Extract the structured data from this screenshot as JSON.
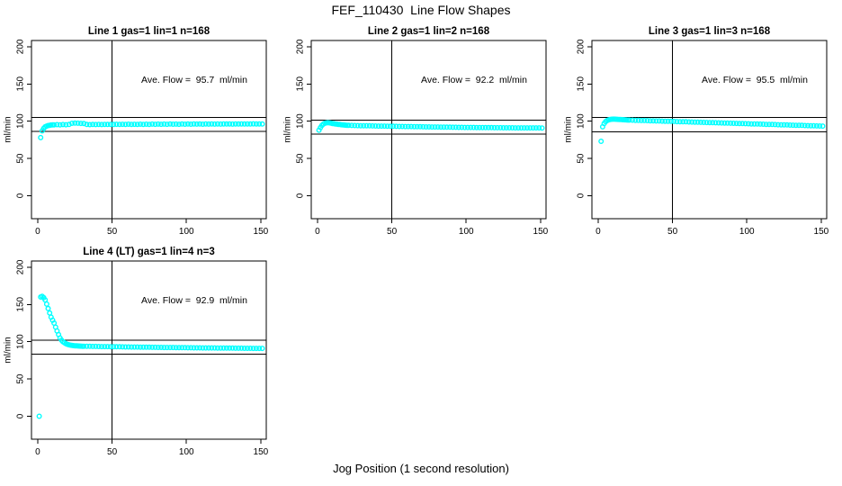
{
  "figure": {
    "title": "FEF_110430  Line Flow Shapes",
    "xlabel": "Jog Position (1 second resolution)"
  },
  "colors": {
    "points": "#00FFFF",
    "axis": "#000000",
    "background": "#FFFFFF"
  },
  "chart_data": [
    {
      "type": "scatter",
      "title": "Line 1 gas=1 lin=1 n=168",
      "gas": 1,
      "lin": 1,
      "n": 168,
      "annotation": "Ave. Flow =  95.7  ml/min",
      "ave_flow_ml_min": 95.7,
      "ylabel": "ml/min",
      "xticks": [
        0,
        50,
        100,
        150
      ],
      "yticks": [
        0,
        50,
        100,
        150,
        200
      ],
      "xlim": [
        -4.2,
        153.7
      ],
      "ylim": [
        -30.8,
        208.3
      ],
      "vlines": [
        50
      ],
      "hlines": [
        105.3,
        86.1
      ],
      "points": [
        [
          2,
          78
        ],
        [
          3,
          87
        ],
        [
          4,
          90.5
        ],
        [
          5,
          92.5
        ],
        [
          6,
          93.5
        ],
        [
          7,
          94.2
        ],
        [
          8,
          94.6
        ],
        [
          9,
          94.9
        ],
        [
          10,
          95.1
        ],
        [
          11,
          95.2
        ],
        [
          13,
          95.4
        ],
        [
          15,
          95.2
        ],
        [
          17,
          95.5
        ],
        [
          19,
          95.3
        ],
        [
          21,
          95.6
        ],
        [
          23,
          97.2
        ],
        [
          25,
          97.4
        ],
        [
          27,
          97.3
        ],
        [
          29,
          97.1
        ],
        [
          31,
          96.8
        ],
        [
          33,
          95.6
        ],
        [
          35,
          95.4
        ],
        [
          37,
          95.6
        ],
        [
          39,
          95.5
        ],
        [
          41,
          95.7
        ],
        [
          43,
          95.5
        ],
        [
          45,
          95.8
        ],
        [
          47,
          95.6
        ],
        [
          49,
          95.8
        ],
        [
          51,
          95.6
        ],
        [
          53,
          95.9
        ],
        [
          55,
          95.7
        ],
        [
          57,
          95.9
        ],
        [
          59,
          95.7
        ],
        [
          61,
          96.0
        ],
        [
          63,
          95.8
        ],
        [
          65,
          95.9
        ],
        [
          67,
          95.7
        ],
        [
          69,
          96.0
        ],
        [
          71,
          95.8
        ],
        [
          73,
          96.0
        ],
        [
          75,
          95.8
        ],
        [
          77,
          96.1
        ],
        [
          79,
          95.9
        ],
        [
          81,
          96.1
        ],
        [
          83,
          95.9
        ],
        [
          85,
          96.1
        ],
        [
          87,
          95.9
        ],
        [
          89,
          96.2
        ],
        [
          91,
          96.0
        ],
        [
          93,
          96.1
        ],
        [
          95,
          95.9
        ],
        [
          97,
          96.2
        ],
        [
          99,
          96.0
        ],
        [
          101,
          96.2
        ],
        [
          103,
          96.0
        ],
        [
          105,
          96.3
        ],
        [
          107,
          96.1
        ],
        [
          109,
          96.2
        ],
        [
          111,
          96.0
        ],
        [
          113,
          96.3
        ],
        [
          115,
          96.1
        ],
        [
          117,
          96.3
        ],
        [
          119,
          96.1
        ],
        [
          121,
          96.3
        ],
        [
          123,
          96.1
        ],
        [
          125,
          96.4
        ],
        [
          127,
          96.2
        ],
        [
          129,
          96.3
        ],
        [
          131,
          96.1
        ],
        [
          133,
          96.4
        ],
        [
          135,
          96.2
        ],
        [
          137,
          96.4
        ],
        [
          139,
          96.2
        ],
        [
          141,
          96.4
        ],
        [
          143,
          96.2
        ],
        [
          145,
          96.5
        ],
        [
          147,
          96.3
        ],
        [
          149,
          96.4
        ],
        [
          151,
          96.2
        ]
      ]
    },
    {
      "type": "scatter",
      "title": "Line 2 gas=1 lin=2 n=168",
      "gas": 1,
      "lin": 2,
      "n": 168,
      "annotation": "Ave. Flow =  92.2  ml/min",
      "ave_flow_ml_min": 92.2,
      "ylabel": "ml/min",
      "xticks": [
        0,
        50,
        100,
        150
      ],
      "yticks": [
        0,
        50,
        100,
        150,
        200
      ],
      "xlim": [
        -4.2,
        153.7
      ],
      "ylim": [
        -30.8,
        208.3
      ],
      "vlines": [
        50
      ],
      "hlines": [
        101.4,
        83.0
      ],
      "points": [
        [
          1,
          88
        ],
        [
          2,
          91.5
        ],
        [
          3,
          94.5
        ],
        [
          4,
          96.3
        ],
        [
          5,
          97.3
        ],
        [
          6,
          97.8
        ],
        [
          7,
          98
        ],
        [
          8,
          97.8
        ],
        [
          9,
          97.4
        ],
        [
          10,
          97
        ],
        [
          11,
          96.7
        ],
        [
          12,
          96.4
        ],
        [
          13,
          96.1
        ],
        [
          14,
          95.8
        ],
        [
          15,
          95.6
        ],
        [
          16,
          95.3
        ],
        [
          17,
          95.1
        ],
        [
          18,
          94.9
        ],
        [
          19,
          94.7
        ],
        [
          20,
          94.5
        ],
        [
          21,
          94.4
        ],
        [
          23,
          94.3
        ],
        [
          25,
          94.2
        ],
        [
          27,
          94.1
        ],
        [
          29,
          94.0
        ],
        [
          31,
          93.9
        ],
        [
          33,
          93.9
        ],
        [
          35,
          93.8
        ],
        [
          37,
          93.7
        ],
        [
          39,
          93.6
        ],
        [
          41,
          93.5
        ],
        [
          43,
          93.5
        ],
        [
          45,
          93.4
        ],
        [
          47,
          93.3
        ],
        [
          49,
          93.2
        ],
        [
          51,
          93.2
        ],
        [
          53,
          93.1
        ],
        [
          55,
          93.0
        ],
        [
          57,
          93.0
        ],
        [
          59,
          92.9
        ],
        [
          61,
          92.8
        ],
        [
          63,
          92.8
        ],
        [
          65,
          92.7
        ],
        [
          67,
          92.6
        ],
        [
          69,
          92.6
        ],
        [
          71,
          92.5
        ],
        [
          73,
          92.4
        ],
        [
          75,
          92.4
        ],
        [
          77,
          92.3
        ],
        [
          79,
          92.3
        ],
        [
          81,
          92.2
        ],
        [
          83,
          92.1
        ],
        [
          85,
          92.1
        ],
        [
          87,
          92.0
        ],
        [
          89,
          92.0
        ],
        [
          91,
          91.9
        ],
        [
          93,
          91.9
        ],
        [
          95,
          91.8
        ],
        [
          97,
          91.8
        ],
        [
          99,
          91.7
        ],
        [
          101,
          91.7
        ],
        [
          103,
          91.6
        ],
        [
          105,
          91.6
        ],
        [
          107,
          91.5
        ],
        [
          109,
          91.5
        ],
        [
          111,
          91.5
        ],
        [
          113,
          91.4
        ],
        [
          115,
          91.4
        ],
        [
          117,
          91.4
        ],
        [
          119,
          91.3
        ],
        [
          121,
          91.3
        ],
        [
          123,
          91.3
        ],
        [
          125,
          91.2
        ],
        [
          127,
          91.2
        ],
        [
          129,
          91.2
        ],
        [
          131,
          91.2
        ],
        [
          133,
          91.1
        ],
        [
          135,
          91.1
        ],
        [
          137,
          91.1
        ],
        [
          139,
          91.1
        ],
        [
          141,
          91.0
        ],
        [
          143,
          91.0
        ],
        [
          145,
          91.0
        ],
        [
          147,
          91.0
        ],
        [
          149,
          91.0
        ],
        [
          151,
          90.9
        ]
      ]
    },
    {
      "type": "scatter",
      "title": "Line 3 gas=1 lin=3 n=168",
      "gas": 1,
      "lin": 3,
      "n": 168,
      "annotation": "Ave. Flow =  95.5  ml/min",
      "ave_flow_ml_min": 95.5,
      "ylabel": "ml/min",
      "xticks": [
        0,
        50,
        100,
        150
      ],
      "yticks": [
        0,
        50,
        100,
        150,
        200
      ],
      "xlim": [
        -4.2,
        153.7
      ],
      "ylim": [
        -30.8,
        208.3
      ],
      "vlines": [
        50
      ],
      "hlines": [
        105.1,
        86.0
      ],
      "points": [
        [
          2,
          73
        ],
        [
          3,
          92.5
        ],
        [
          4,
          97
        ],
        [
          5,
          99.5
        ],
        [
          6,
          101
        ],
        [
          7,
          101.8
        ],
        [
          8,
          102.3
        ],
        [
          9,
          102.6
        ],
        [
          10,
          102.7
        ],
        [
          11,
          102.7
        ],
        [
          12,
          102.6
        ],
        [
          13,
          102.5
        ],
        [
          14,
          102.4
        ],
        [
          15,
          102.3
        ],
        [
          16,
          102.2
        ],
        [
          17,
          102.0
        ],
        [
          18,
          101.9
        ],
        [
          19,
          101.8
        ],
        [
          20,
          101.6
        ],
        [
          21,
          101.5
        ],
        [
          23,
          101.4
        ],
        [
          25,
          101.2
        ],
        [
          27,
          101.1
        ],
        [
          29,
          101.0
        ],
        [
          31,
          100.9
        ],
        [
          33,
          100.8
        ],
        [
          35,
          100.6
        ],
        [
          37,
          100.5
        ],
        [
          39,
          100.4
        ],
        [
          41,
          100.3
        ],
        [
          43,
          100.1
        ],
        [
          45,
          100.0
        ],
        [
          47,
          99.9
        ],
        [
          49,
          99.8
        ],
        [
          51,
          99.7
        ],
        [
          53,
          99.5
        ],
        [
          55,
          99.4
        ],
        [
          57,
          99.3
        ],
        [
          59,
          99.2
        ],
        [
          61,
          99.0
        ],
        [
          63,
          98.9
        ],
        [
          65,
          98.8
        ],
        [
          67,
          98.7
        ],
        [
          69,
          98.5
        ],
        [
          71,
          98.4
        ],
        [
          73,
          98.3
        ],
        [
          75,
          98.2
        ],
        [
          77,
          98.0
        ],
        [
          79,
          97.9
        ],
        [
          81,
          97.8
        ],
        [
          83,
          97.7
        ],
        [
          85,
          97.6
        ],
        [
          87,
          97.4
        ],
        [
          89,
          97.3
        ],
        [
          91,
          97.2
        ],
        [
          93,
          97.1
        ],
        [
          95,
          96.9
        ],
        [
          97,
          96.8
        ],
        [
          99,
          96.7
        ],
        [
          101,
          96.6
        ],
        [
          103,
          96.4
        ],
        [
          105,
          96.3
        ],
        [
          107,
          96.2
        ],
        [
          109,
          96.1
        ],
        [
          111,
          96.0
        ],
        [
          113,
          95.8
        ],
        [
          115,
          95.7
        ],
        [
          117,
          95.6
        ],
        [
          119,
          95.5
        ],
        [
          121,
          95.3
        ],
        [
          123,
          95.2
        ],
        [
          125,
          95.1
        ],
        [
          127,
          95.0
        ],
        [
          129,
          94.8
        ],
        [
          131,
          94.7
        ],
        [
          133,
          94.6
        ],
        [
          135,
          94.5
        ],
        [
          137,
          94.4
        ],
        [
          139,
          94.2
        ],
        [
          141,
          94.1
        ],
        [
          143,
          94.0
        ],
        [
          145,
          93.9
        ],
        [
          147,
          93.7
        ],
        [
          149,
          93.6
        ],
        [
          151,
          93.5
        ]
      ]
    },
    {
      "type": "scatter",
      "title": "Line 4 (LT) gas=1 lin=4 n=3",
      "gas": 1,
      "lin": 4,
      "n": 3,
      "annotation": "Ave. Flow =  92.9  ml/min",
      "ave_flow_ml_min": 92.9,
      "ylabel": "ml/min",
      "xticks": [
        0,
        50,
        100,
        150
      ],
      "yticks": [
        0,
        50,
        100,
        150,
        200
      ],
      "xlim": [
        -4.2,
        153.7
      ],
      "ylim": [
        -30.8,
        208.3
      ],
      "vlines": [
        50
      ],
      "hlines": [
        102.2,
        83.6
      ],
      "points": [
        [
          1,
          0
        ],
        [
          2,
          160
        ],
        [
          3,
          161
        ],
        [
          4,
          159
        ],
        [
          5,
          156
        ],
        [
          6,
          150.5
        ],
        [
          7,
          144.5
        ],
        [
          8,
          138.5
        ],
        [
          9,
          133
        ],
        [
          10,
          129
        ],
        [
          11,
          125
        ],
        [
          12,
          119.5
        ],
        [
          13,
          114.5
        ],
        [
          14,
          109.5
        ],
        [
          15,
          105
        ],
        [
          16,
          102
        ],
        [
          17,
          100
        ],
        [
          18,
          98.5
        ],
        [
          19,
          97.3
        ],
        [
          20,
          96.5
        ],
        [
          21,
          95.9
        ],
        [
          22,
          95.4
        ],
        [
          23,
          95.0
        ],
        [
          24,
          94.8
        ],
        [
          25,
          94.6
        ],
        [
          26,
          94.4
        ],
        [
          27,
          94.3
        ],
        [
          28,
          94.2
        ],
        [
          29,
          94.1
        ],
        [
          30,
          94.0
        ],
        [
          31,
          93.9
        ],
        [
          33,
          93.9
        ],
        [
          35,
          93.8
        ],
        [
          37,
          93.7
        ],
        [
          39,
          93.7
        ],
        [
          41,
          93.6
        ],
        [
          43,
          93.5
        ],
        [
          45,
          93.5
        ],
        [
          47,
          93.4
        ],
        [
          49,
          93.3
        ],
        [
          51,
          93.3
        ],
        [
          53,
          93.2
        ],
        [
          55,
          93.2
        ],
        [
          57,
          93.1
        ],
        [
          59,
          93.0
        ],
        [
          61,
          93.0
        ],
        [
          63,
          92.9
        ],
        [
          65,
          92.9
        ],
        [
          67,
          92.8
        ],
        [
          69,
          92.7
        ],
        [
          71,
          92.7
        ],
        [
          73,
          92.6
        ],
        [
          75,
          92.6
        ],
        [
          77,
          92.5
        ],
        [
          79,
          92.5
        ],
        [
          81,
          92.4
        ],
        [
          83,
          92.4
        ],
        [
          85,
          92.3
        ],
        [
          87,
          92.3
        ],
        [
          89,
          92.2
        ],
        [
          91,
          92.2
        ],
        [
          93,
          92.1
        ],
        [
          95,
          92.1
        ],
        [
          97,
          92.0
        ],
        [
          99,
          92.0
        ],
        [
          101,
          91.9
        ],
        [
          103,
          91.9
        ],
        [
          105,
          91.8
        ],
        [
          107,
          91.8
        ],
        [
          109,
          91.8
        ],
        [
          111,
          91.7
        ],
        [
          113,
          91.7
        ],
        [
          115,
          91.6
        ],
        [
          117,
          91.6
        ],
        [
          119,
          91.6
        ],
        [
          121,
          91.5
        ],
        [
          123,
          91.5
        ],
        [
          125,
          91.5
        ],
        [
          127,
          91.4
        ],
        [
          129,
          91.4
        ],
        [
          131,
          91.4
        ],
        [
          133,
          91.3
        ],
        [
          135,
          91.3
        ],
        [
          137,
          91.3
        ],
        [
          139,
          91.2
        ],
        [
          141,
          91.2
        ],
        [
          143,
          91.2
        ],
        [
          145,
          91.1
        ],
        [
          147,
          91.1
        ],
        [
          149,
          91.1
        ],
        [
          151,
          91.0
        ]
      ]
    }
  ]
}
